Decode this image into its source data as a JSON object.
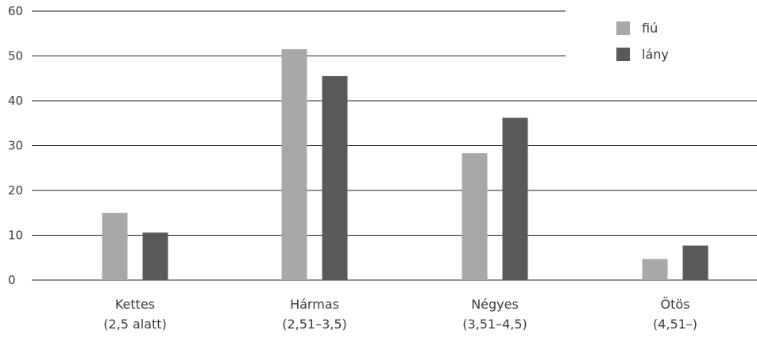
{
  "chart_data": {
    "type": "bar",
    "categories": [
      [
        "Kettes",
        "(2,5 alatt)"
      ],
      [
        "Hármas",
        "(2,51–3,5)"
      ],
      [
        "Négyes",
        "(3,51–4,5)"
      ],
      [
        "Ötös",
        "(4,51–)"
      ]
    ],
    "series": [
      {
        "name": "fiú",
        "color": "#a7a8aa",
        "values": [
          15,
          51.5,
          28.3,
          4.7
        ]
      },
      {
        "name": "lány",
        "color": "#58595b",
        "values": [
          10.6,
          45.5,
          36.2,
          7.7
        ]
      }
    ],
    "yticks": [
      "0",
      "10",
      "20",
      "30",
      "40",
      "50",
      "60"
    ],
    "ylim": [
      0,
      60
    ],
    "grid": true,
    "legend_position": "top-right"
  }
}
